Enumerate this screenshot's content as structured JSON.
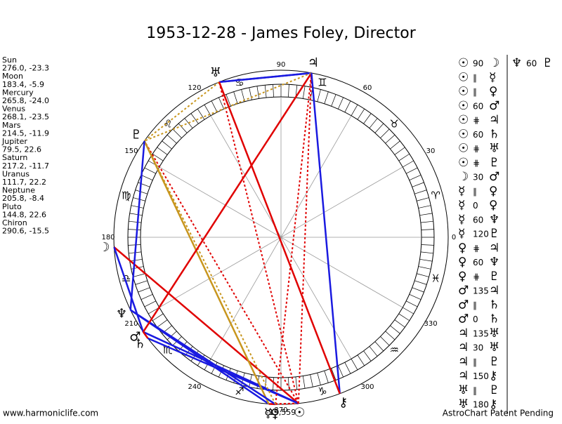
{
  "title": "1953-12-28 - James Foley, Director",
  "planets": [
    {
      "name": "Sun",
      "glyph": "☉",
      "longitude": 276.0,
      "declination": -23.3,
      "label": "276.0, -23.3"
    },
    {
      "name": "Moon",
      "glyph": "☽",
      "longitude": 183.4,
      "declination": -5.9,
      "label": "183.4, -5.9"
    },
    {
      "name": "Mercury",
      "glyph": "☿",
      "longitude": 265.8,
      "declination": -24.0,
      "label": "265.8, -24.0"
    },
    {
      "name": "Venus",
      "glyph": "♀",
      "longitude": 268.1,
      "declination": -23.5,
      "label": "268.1, -23.5"
    },
    {
      "name": "Mars",
      "glyph": "♂",
      "longitude": 214.5,
      "declination": -11.9,
      "label": "214.5, -11.9"
    },
    {
      "name": "Jupiter",
      "glyph": "♃",
      "longitude": 79.5,
      "declination": 22.6,
      "label": "79.5, 22.6"
    },
    {
      "name": "Saturn",
      "glyph": "♄",
      "longitude": 217.2,
      "declination": -11.7,
      "label": "217.2, -11.7"
    },
    {
      "name": "Uranus",
      "glyph": "♅",
      "longitude": 111.7,
      "declination": 22.2,
      "label": "111.7, 22.2"
    },
    {
      "name": "Neptune",
      "glyph": "♆",
      "longitude": 205.8,
      "declination": -8.4,
      "label": "205.8, -8.4"
    },
    {
      "name": "Pluto",
      "glyph": "♇",
      "longitude": 144.8,
      "declination": 22.6,
      "label": "144.8, 22.6"
    },
    {
      "name": "Chiron",
      "glyph": "⚷",
      "longitude": 290.6,
      "declination": -15.5,
      "label": "290.6, -15.5"
    }
  ],
  "signs": [
    "♈",
    "♉",
    "♊",
    "♋",
    "♌",
    "♍",
    "♎",
    "♏",
    "♐",
    "♑",
    "♒",
    "♓"
  ],
  "degree_labels": [
    0,
    30,
    60,
    90,
    120,
    150,
    180,
    210,
    240,
    270,
    300,
    330
  ],
  "bottom_note": "-19,559",
  "aspects": [
    {
      "p1": "☉",
      "aspect": "90",
      "p2": "☽",
      "color": "#e00000",
      "dashed": false
    },
    {
      "p1": "☉",
      "aspect": "∥",
      "p2": "☿",
      "color": "#e00000",
      "dashed": true
    },
    {
      "p1": "☉",
      "aspect": "∥",
      "p2": "♀",
      "color": "#e00000",
      "dashed": true
    },
    {
      "p1": "☉",
      "aspect": "60",
      "p2": "♂",
      "color": "#1a1ae0",
      "dashed": false
    },
    {
      "p1": "☉",
      "aspect": "⋕",
      "p2": "♃",
      "color": "#e00000",
      "dashed": true
    },
    {
      "p1": "☉",
      "aspect": "60",
      "p2": "♄",
      "color": "#1a1ae0",
      "dashed": false
    },
    {
      "p1": "☉",
      "aspect": "⋕",
      "p2": "♅",
      "color": "#e00000",
      "dashed": true
    },
    {
      "p1": "☉",
      "aspect": "⋕",
      "p2": "♇",
      "color": "#e00000",
      "dashed": true
    },
    {
      "p1": "☽",
      "aspect": "30",
      "p2": "♂",
      "color": "#1a1ae0",
      "dashed": false
    },
    {
      "p1": "☿",
      "aspect": "∥",
      "p2": "♀",
      "color": "#e00000",
      "dashed": true
    },
    {
      "p1": "☿",
      "aspect": "0",
      "p2": "♀",
      "color": "#e00000",
      "dashed": false
    },
    {
      "p1": "☿",
      "aspect": "60",
      "p2": "♆",
      "color": "#1a1ae0",
      "dashed": false
    },
    {
      "p1": "☿",
      "aspect": "120",
      "p2": "♇",
      "color": "#c8961e",
      "dashed": false
    },
    {
      "p1": "♀",
      "aspect": "⋕",
      "p2": "♃",
      "color": "#e00000",
      "dashed": true
    },
    {
      "p1": "♀",
      "aspect": "60",
      "p2": "♆",
      "color": "#1a1ae0",
      "dashed": false
    },
    {
      "p1": "♀",
      "aspect": "⋕",
      "p2": "♇",
      "color": "#c8961e",
      "dashed": true
    },
    {
      "p1": "♂",
      "aspect": "135",
      "p2": "♃",
      "color": "#e00000",
      "dashed": false
    },
    {
      "p1": "♂",
      "aspect": "∥",
      "p2": "♄",
      "color": "#e00000",
      "dashed": true
    },
    {
      "p1": "♂",
      "aspect": "0",
      "p2": "♄",
      "color": "#e00000",
      "dashed": false
    },
    {
      "p1": "♃",
      "aspect": "135",
      "p2": "♅",
      "color": "#1a1ae0",
      "dashed": false
    },
    {
      "p1": "♃",
      "aspect": "30",
      "p2": "♅",
      "color": "#1a1ae0",
      "dashed": false
    },
    {
      "p1": "♃",
      "aspect": "∥",
      "p2": "♇",
      "color": "#c8961e",
      "dashed": true
    },
    {
      "p1": "♃",
      "aspect": "150",
      "p2": "⚷",
      "color": "#1a1ae0",
      "dashed": false
    },
    {
      "p1": "♅",
      "aspect": "∥",
      "p2": "♇",
      "color": "#c8961e",
      "dashed": true
    },
    {
      "p1": "♅",
      "aspect": "180",
      "p2": "⚷",
      "color": "#e00000",
      "dashed": false
    },
    {
      "p1": "♆",
      "aspect": "60",
      "p2": "♇",
      "color": "#1a1ae0",
      "dashed": false
    }
  ],
  "footer": {
    "left": "www.harmoniclife.com",
    "right": "AstroChart Patent Pending"
  }
}
